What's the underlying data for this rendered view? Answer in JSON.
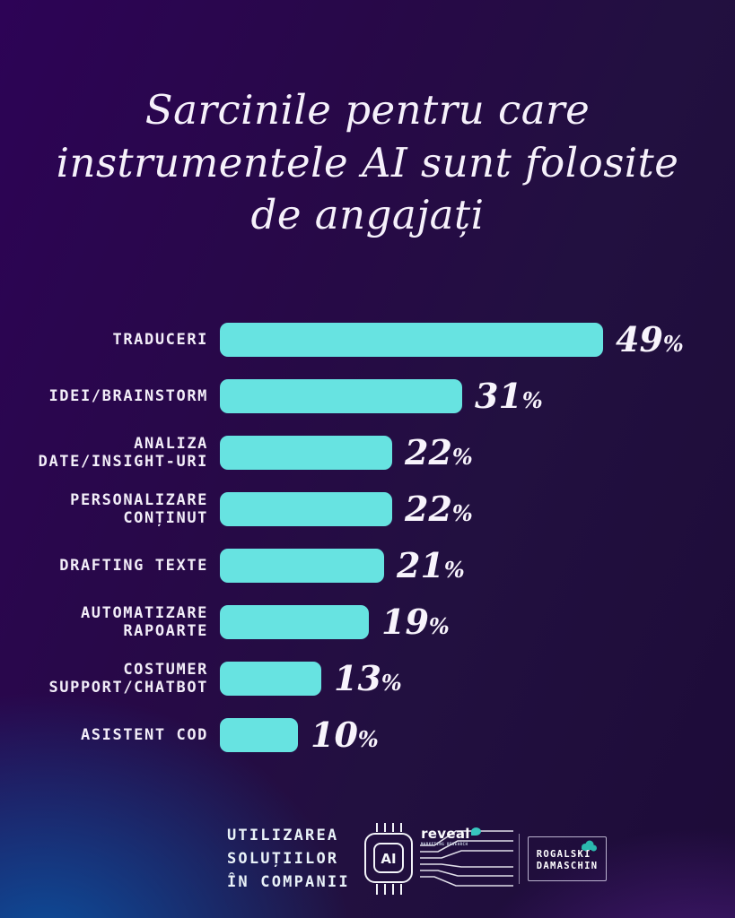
{
  "title": {
    "lines": [
      "Sarcinile pentru care",
      "instrumentele AI sunt folosite",
      "de angajați"
    ]
  },
  "chart_data": {
    "type": "bar",
    "orientation": "horizontal",
    "title": "Sarcinile pentru care instrumentele AI sunt folosite de angajați",
    "categories": [
      "TRADUCERI",
      "IDEI/BRAINSTORM",
      "ANALIZA DATE/INSIGHT-URI",
      "PERSONALIZARE CONȚINUT",
      "DRAFTING TEXTE",
      "AUTOMATIZARE RAPOARTE",
      "COSTUMER SUPPORT/CHATBOT",
      "ASISTENT COD"
    ],
    "values": [
      49,
      31,
      22,
      22,
      21,
      19,
      13,
      10
    ],
    "unit": "%",
    "xlim": [
      0,
      52
    ],
    "grid": false,
    "legend": false,
    "bar_color": "#67e3e1",
    "value_label_color": "#f8f4fc",
    "category_label_color": "#f2edf8",
    "background_top_color": "#2d0356",
    "background_bottom_left_color": "#0a54a2",
    "background_bottom_right_color": "#56208e"
  },
  "rows": [
    {
      "label_lines": [
        "TRADUCERI"
      ],
      "value": 49
    },
    {
      "label_lines": [
        "IDEI/BRAINSTORM"
      ],
      "value": 31
    },
    {
      "label_lines": [
        "ANALIZA",
        "DATE/INSIGHT-URI"
      ],
      "value": 22
    },
    {
      "label_lines": [
        "PERSONALIZARE",
        "CONȚINUT"
      ],
      "value": 22
    },
    {
      "label_lines": [
        "DRAFTING TEXTE"
      ],
      "value": 21
    },
    {
      "label_lines": [
        "AUTOMATIZARE",
        "RAPOARTE"
      ],
      "value": 19
    },
    {
      "label_lines": [
        "COSTUMER",
        "SUPPORT/CHATBOT"
      ],
      "value": 13
    },
    {
      "label_lines": [
        "ASISTENT COD"
      ],
      "value": 10
    }
  ],
  "footer": {
    "caption_lines": [
      "UTILIZAREA",
      "SOLUȚIILOR",
      "ÎN COMPANII"
    ],
    "chip_label": "AI",
    "reveal_name": "reveal",
    "reveal_subtitle": "MARKETING RESEARCH",
    "partner_line1": "ROGALSKI",
    "partner_line2": "DAMASCHIN",
    "accent_teal": "#2bb9ae"
  }
}
